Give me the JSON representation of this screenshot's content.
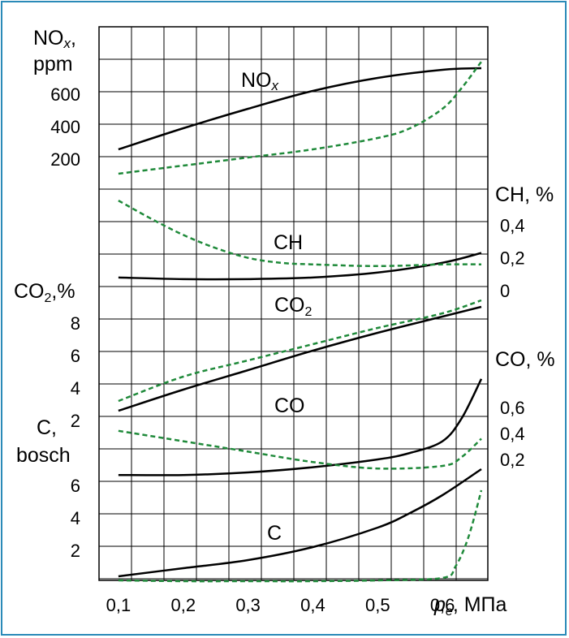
{
  "colors": {
    "frame": "#2a8ab8",
    "solid": "#000000",
    "dashed": "#1f8a3a",
    "grid": "#000000"
  },
  "chart_data": {
    "type": "line",
    "x_axis": {
      "ticks": [
        0.1,
        0.2,
        0.3,
        0.4,
        0.5,
        0.6
      ],
      "tick_labels": [
        "0,1",
        "0,2",
        "0,3",
        "0,4",
        "0,5",
        "0,6"
      ],
      "label_symbol": "p",
      "label_subscript": "e",
      "label_unit": ", МПа",
      "range": [
        0.07,
        0.67
      ]
    },
    "grid": true,
    "legend": "none",
    "panels": [
      {
        "id": "nox",
        "curve_label": "NO",
        "curve_label_sub": "x",
        "left_axis": {
          "label_line1": "NO",
          "label_line1_sub": "x",
          "label_line1_suffix": ",",
          "label_line2": "ppm",
          "ticks": [
            200,
            400,
            600
          ],
          "tick_labels": [
            "200",
            "400",
            "600"
          ],
          "range": [
            0,
            1000
          ]
        },
        "series": [
          {
            "style": "solid",
            "x": [
              0.1,
              0.2,
              0.3,
              0.4,
              0.5,
              0.6,
              0.66
            ],
            "y": [
              260,
              390,
              510,
              620,
              700,
              750,
              760
            ]
          },
          {
            "style": "dashed",
            "x": [
              0.1,
              0.2,
              0.3,
              0.4,
              0.5,
              0.55,
              0.6,
              0.63,
              0.66
            ],
            "y": [
              110,
              160,
              210,
              260,
              330,
              390,
              510,
              640,
              800
            ]
          }
        ]
      },
      {
        "id": "ch",
        "curve_label": "CH",
        "right_axis": {
          "label": "CH, %",
          "ticks": [
            0,
            0.2,
            0.4
          ],
          "tick_labels": [
            "0",
            "0,2",
            "0,4"
          ],
          "range": [
            0,
            0.6
          ]
        },
        "series": [
          {
            "style": "solid",
            "x": [
              0.1,
              0.2,
              0.3,
              0.4,
              0.5,
              0.6,
              0.66
            ],
            "y": [
              0.08,
              0.07,
              0.07,
              0.08,
              0.11,
              0.17,
              0.23
            ]
          },
          {
            "style": "dashed",
            "x": [
              0.1,
              0.15,
              0.2,
              0.25,
              0.3,
              0.35,
              0.4,
              0.5,
              0.6,
              0.66
            ],
            "y": [
              0.55,
              0.44,
              0.34,
              0.26,
              0.2,
              0.17,
              0.16,
              0.15,
              0.16,
              0.16
            ]
          }
        ]
      },
      {
        "id": "co2",
        "curve_label": "CO",
        "curve_label_sub": "2",
        "left_axis": {
          "label": "CO",
          "label_sub": "2",
          "label_suffix": ",%",
          "ticks": [
            2,
            4,
            6,
            8
          ],
          "tick_labels": [
            "2",
            "4",
            "6",
            "8"
          ],
          "range": [
            0,
            10
          ]
        },
        "series": [
          {
            "style": "solid",
            "x": [
              0.1,
              0.2,
              0.3,
              0.4,
              0.5,
              0.6,
              0.66
            ],
            "y": [
              2.6,
              3.9,
              5.1,
              6.3,
              7.4,
              8.4,
              9.0
            ]
          },
          {
            "style": "dashed",
            "x": [
              0.1,
              0.2,
              0.3,
              0.4,
              0.5,
              0.6,
              0.66
            ],
            "y": [
              3.2,
              4.7,
              5.7,
              6.7,
              7.7,
              8.6,
              9.4
            ]
          }
        ]
      },
      {
        "id": "co",
        "curve_label": "CO",
        "right_axis": {
          "label": "CO, %",
          "ticks": [
            0.2,
            0.4,
            0.6
          ],
          "tick_labels": [
            "0,2",
            "0,4",
            "0,6"
          ],
          "range": [
            0,
            1.0
          ]
        },
        "series": [
          {
            "style": "solid",
            "x": [
              0.1,
              0.2,
              0.3,
              0.4,
              0.5,
              0.55,
              0.6,
              0.63,
              0.66
            ],
            "y": [
              0.08,
              0.08,
              0.1,
              0.14,
              0.2,
              0.25,
              0.34,
              0.52,
              0.82
            ]
          },
          {
            "style": "dashed",
            "x": [
              0.1,
              0.2,
              0.3,
              0.4,
              0.5,
              0.6,
              0.63,
              0.66
            ],
            "y": [
              0.42,
              0.34,
              0.26,
              0.18,
              0.13,
              0.15,
              0.22,
              0.36
            ]
          }
        ]
      },
      {
        "id": "soot",
        "curve_label": "C",
        "left_axis": {
          "label_line1": "C,",
          "label_line2": "bosch",
          "ticks": [
            2,
            4,
            6
          ],
          "tick_labels": [
            "2",
            "4",
            "6"
          ],
          "range": [
            0,
            8
          ]
        },
        "series": [
          {
            "style": "solid",
            "x": [
              0.1,
              0.2,
              0.3,
              0.4,
              0.5,
              0.55,
              0.6,
              0.66
            ],
            "y": [
              0.4,
              0.9,
              1.4,
              2.2,
              3.4,
              4.3,
              5.4,
              7.0
            ]
          },
          {
            "style": "dashed",
            "x": [
              0.1,
              0.2,
              0.3,
              0.4,
              0.5,
              0.6,
              0.62,
              0.64,
              0.66
            ],
            "y": [
              0.15,
              0.1,
              0.1,
              0.1,
              0.15,
              0.3,
              1.0,
              2.8,
              5.7
            ]
          }
        ]
      }
    ]
  }
}
